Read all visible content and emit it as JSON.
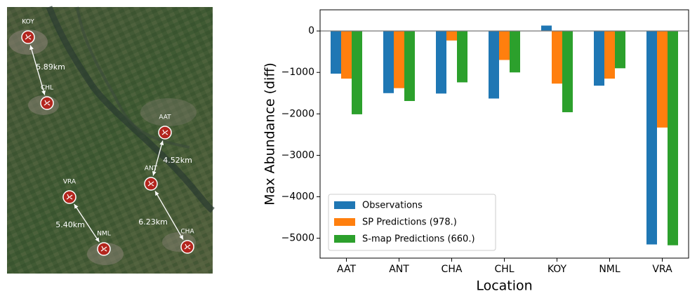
{
  "map": {
    "sites": [
      "KOY",
      "CHL",
      "AAT",
      "ANT",
      "VRA",
      "NML",
      "CHA"
    ],
    "distances": [
      "5.89km",
      "4.52km",
      "5.40km",
      "6.23km"
    ]
  },
  "chart_data": {
    "type": "bar",
    "x_label": "Location",
    "y_label": "Max Abundance (diff)",
    "categories": [
      "AAT",
      "ANT",
      "CHA",
      "CHL",
      "KOY",
      "NML",
      "VRA"
    ],
    "series": [
      {
        "name": "Observations",
        "color": "#1f77b4",
        "values": [
          -1030,
          -1500,
          -1510,
          -1630,
          130,
          -1320,
          -5150
        ]
      },
      {
        "name": "SP Predictions (978.)",
        "color": "#ff7f0e",
        "values": [
          -1150,
          -1380,
          -230,
          -700,
          -1270,
          -1150,
          -2330
        ]
      },
      {
        "name": "S-map Predictions (660.)",
        "color": "#2ca02c",
        "values": [
          -2010,
          -1690,
          -1240,
          -1000,
          -1960,
          -900,
          -5170
        ]
      }
    ],
    "ylim": [
      -5480,
      510
    ],
    "yticks": [
      0,
      {
        "value": -1000,
        "label": "−1000"
      },
      {
        "value": -2000,
        "label": "−2000"
      },
      {
        "value": -3000,
        "label": "−3000"
      },
      {
        "value": -4000,
        "label": "−4000"
      },
      {
        "value": -5000,
        "label": "−5000"
      }
    ],
    "legend": "lower left",
    "zero_line": true
  }
}
